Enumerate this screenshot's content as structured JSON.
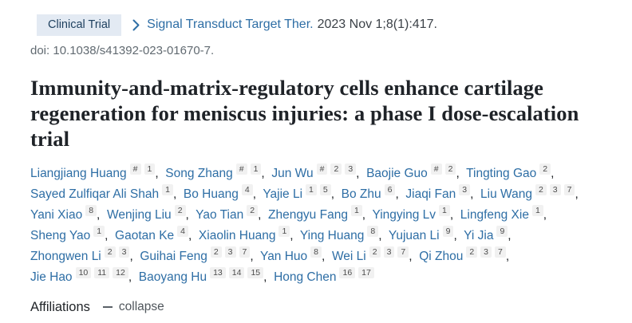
{
  "header": {
    "publication_type": "Clinical Trial",
    "journal_link": "Signal Transduct Target Ther.",
    "citation": "2023 Nov 1;8(1):417.",
    "doi": "doi: 10.1038/s41392-023-01670-7.",
    "icons": {
      "chevron": "chevron-right",
      "collapse": "minus"
    }
  },
  "title": "Immunity-and-matrix-regulatory cells enhance cartilage regeneration for meniscus injuries: a phase I dose-escalation trial",
  "authors": [
    {
      "name": "Liangjiang Huang",
      "sups": [
        "#",
        "1"
      ]
    },
    {
      "name": "Song Zhang",
      "sups": [
        "#",
        "1"
      ]
    },
    {
      "name": "Jun Wu",
      "sups": [
        "#",
        "2",
        "3"
      ]
    },
    {
      "name": "Baojie Guo",
      "sups": [
        "#",
        "2"
      ]
    },
    {
      "name": "Tingting Gao",
      "sups": [
        "2"
      ]
    },
    {
      "name": "Sayed Zulfiqar Ali Shah",
      "sups": [
        "1"
      ]
    },
    {
      "name": "Bo Huang",
      "sups": [
        "4"
      ]
    },
    {
      "name": "Yajie Li",
      "sups": [
        "1",
        "5"
      ]
    },
    {
      "name": "Bo Zhu",
      "sups": [
        "6"
      ]
    },
    {
      "name": "Jiaqi Fan",
      "sups": [
        "3"
      ]
    },
    {
      "name": "Liu Wang",
      "sups": [
        "2",
        "3",
        "7"
      ]
    },
    {
      "name": "Yani Xiao",
      "sups": [
        "8"
      ]
    },
    {
      "name": "Wenjing Liu",
      "sups": [
        "2"
      ]
    },
    {
      "name": "Yao Tian",
      "sups": [
        "2"
      ]
    },
    {
      "name": "Zhengyu Fang",
      "sups": [
        "1"
      ]
    },
    {
      "name": "Yingying Lv",
      "sups": [
        "1"
      ]
    },
    {
      "name": "Lingfeng Xie",
      "sups": [
        "1"
      ]
    },
    {
      "name": "Sheng Yao",
      "sups": [
        "1"
      ]
    },
    {
      "name": "Gaotan Ke",
      "sups": [
        "4"
      ]
    },
    {
      "name": "Xiaolin Huang",
      "sups": [
        "1"
      ]
    },
    {
      "name": "Ying Huang",
      "sups": [
        "8"
      ]
    },
    {
      "name": "Yujuan Li",
      "sups": [
        "9"
      ]
    },
    {
      "name": "Yi Jia",
      "sups": [
        "9"
      ]
    },
    {
      "name": "Zhongwen Li",
      "sups": [
        "2",
        "3"
      ]
    },
    {
      "name": "Guihai Feng",
      "sups": [
        "2",
        "3",
        "7"
      ]
    },
    {
      "name": "Yan Huo",
      "sups": [
        "8"
      ]
    },
    {
      "name": "Wei Li",
      "sups": [
        "2",
        "3",
        "7"
      ]
    },
    {
      "name": "Qi Zhou",
      "sups": [
        "2",
        "3",
        "7"
      ]
    },
    {
      "name": "Jie Hao",
      "sups": [
        "10",
        "11",
        "12"
      ]
    },
    {
      "name": "Baoyang Hu",
      "sups": [
        "13",
        "14",
        "15"
      ]
    },
    {
      "name": "Hong Chen",
      "sups": [
        "16",
        "17"
      ]
    }
  ],
  "affiliations": {
    "label": "Affiliations",
    "collapse_label": "collapse"
  },
  "colors": {
    "badge_bg": "#e3eaf3",
    "badge_text": "#1d3f5e",
    "link_blue": "#2e6ea5",
    "text_dark": "#212529",
    "text_gray": "#616a71",
    "sup_bg": "#f1f1f1",
    "sup_text": "#4c4c4c"
  }
}
